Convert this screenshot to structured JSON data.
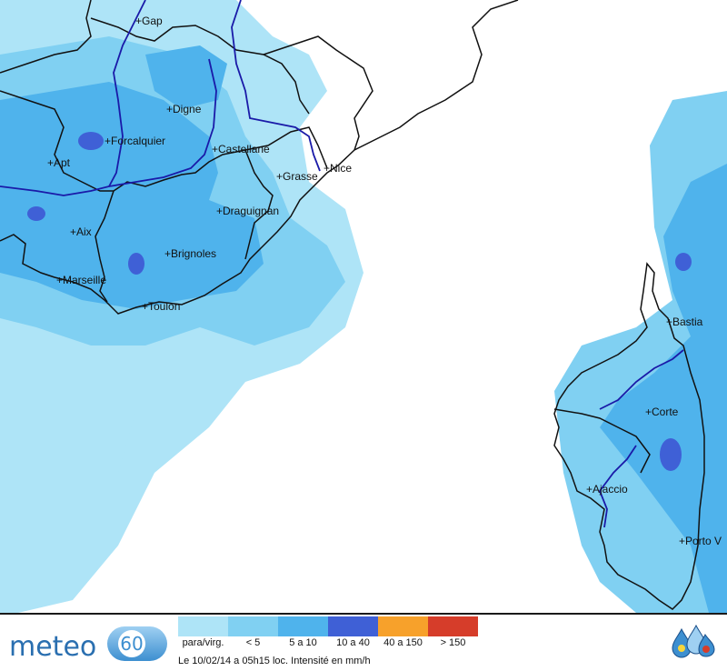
{
  "map": {
    "cities": [
      {
        "name": "Gap"
      },
      {
        "name": "Digne"
      },
      {
        "name": "Forcalquier"
      },
      {
        "name": "Castellane"
      },
      {
        "name": "Apt"
      },
      {
        "name": "Nice"
      },
      {
        "name": "Grasse"
      },
      {
        "name": "Draguignan"
      },
      {
        "name": "Aix"
      },
      {
        "name": "Brignoles"
      },
      {
        "name": "Marseille"
      },
      {
        "name": "Toulon"
      },
      {
        "name": "Bastia"
      },
      {
        "name": "Corte"
      },
      {
        "name": "Ajaccio"
      },
      {
        "name": "Porto V"
      }
    ],
    "colors": {
      "para_virg": "#aee4f7",
      "lt5": "#80d0f2",
      "5a10": "#4fb3ec",
      "10a40": "#3f60d6",
      "40a150": "#f7a12b",
      "gt150": "#d63d2a",
      "border": "#111111",
      "river": "#1a1aa8"
    }
  },
  "footer": {
    "logo_text": "meteo",
    "logo_number": "60",
    "legend": [
      {
        "label": "para/virg.",
        "color": "#aee4f7"
      },
      {
        "label": "< 5",
        "color": "#80d0f2"
      },
      {
        "label": "5 a 10",
        "color": "#4fb3ec"
      },
      {
        "label": "10 a 40",
        "color": "#3f60d6"
      },
      {
        "label": "40 a 150",
        "color": "#f7a12b"
      },
      {
        "label": "> 150",
        "color": "#d63d2a"
      }
    ],
    "caption": "Le 10/02/14 a 05h15 loc. Intensité en mm/h",
    "brand_icon": "water-drops-icon"
  }
}
